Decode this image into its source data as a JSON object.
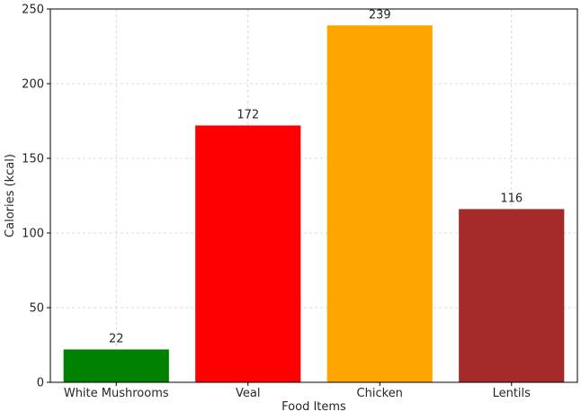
{
  "chart_data": {
    "type": "bar",
    "categories": [
      "White Mushrooms",
      "Veal",
      "Chicken",
      "Lentils"
    ],
    "values": [
      22,
      172,
      239,
      116
    ],
    "colors": [
      "#008000",
      "#ff0000",
      "#ffa500",
      "#a52a2a"
    ],
    "xlabel": "Food Items",
    "ylabel": "Calories (kcal)",
    "ylim": [
      0,
      250
    ],
    "yticks": [
      0,
      50,
      100,
      150,
      200,
      250
    ],
    "grid": true
  }
}
